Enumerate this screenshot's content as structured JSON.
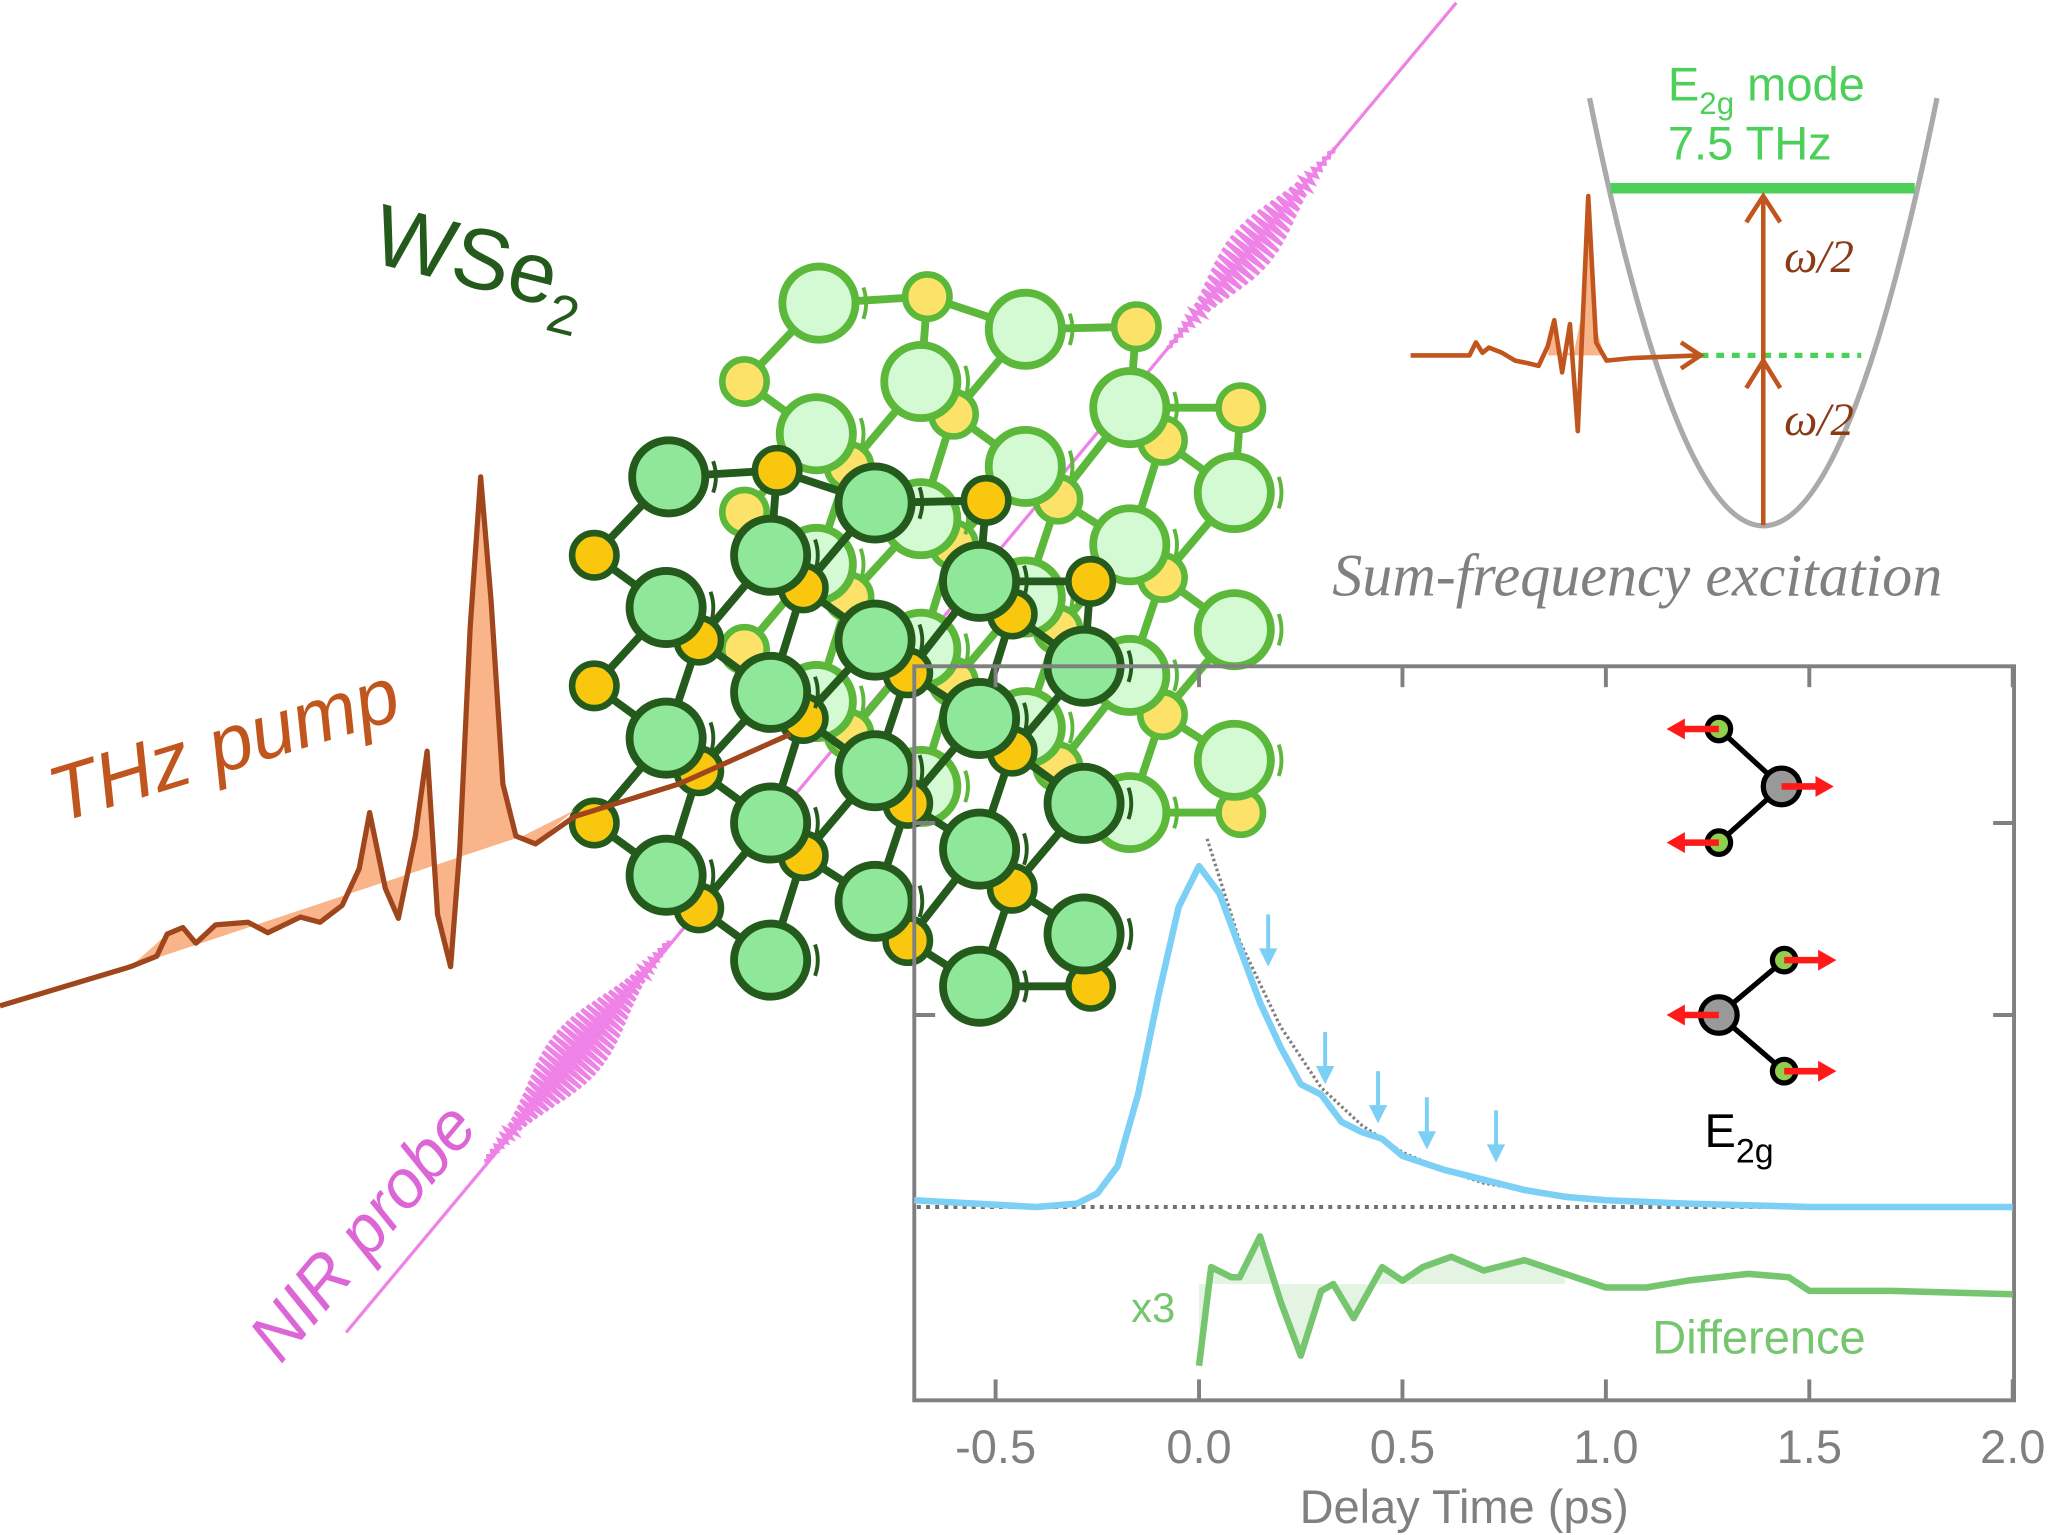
{
  "labels": {
    "material": "WSe",
    "material_sub": "2",
    "pump": "THz pump",
    "probe": "NIR probe",
    "mode_line1_main": "E",
    "mode_line1_sub": "2g",
    "mode_line1_rest": " mode",
    "mode_line2": "7.5 THz",
    "omega_upper": "ω/2",
    "omega_lower": "ω/2",
    "sum_freq": "Sum-frequency excitation",
    "e2g_main": "E",
    "e2g_sub": "2g",
    "x3": "x3",
    "difference": "Difference"
  },
  "colors": {
    "pump": "#b5501e",
    "pump_fill": "#f9b48a",
    "probe": "#ee82e6",
    "mode_green": "#4cd05a",
    "lattice_dark": "#245a1c",
    "lattice_light": "#5cb83a",
    "se_yellow": "#f9c80e",
    "signal": "#7ccff5",
    "difference": "#76c670",
    "axis": "#808080"
  },
  "chart_data": {
    "type": "line",
    "xlabel": "Delay Time (ps)",
    "xlim": [
      -0.7,
      2.0
    ],
    "xticks": [
      "-0.5",
      "0.0",
      "0.5",
      "1.0",
      "1.5",
      "2.0"
    ],
    "ylabel": "",
    "grid": false,
    "series": [
      {
        "role": "signal",
        "color": "#7ccff5",
        "x": [
          -0.7,
          -0.4,
          -0.3,
          -0.25,
          -0.2,
          -0.15,
          -0.1,
          -0.05,
          0.0,
          0.05,
          0.1,
          0.15,
          0.2,
          0.25,
          0.3,
          0.35,
          0.4,
          0.45,
          0.5,
          0.6,
          0.7,
          0.8,
          0.9,
          1.0,
          1.2,
          1.5,
          1.8,
          2.0
        ],
        "y": [
          0.02,
          0.0,
          0.01,
          0.04,
          0.12,
          0.33,
          0.62,
          0.88,
          1.0,
          0.92,
          0.76,
          0.6,
          0.47,
          0.36,
          0.33,
          0.25,
          0.22,
          0.2,
          0.15,
          0.11,
          0.08,
          0.05,
          0.03,
          0.02,
          0.01,
          0.0,
          0.0,
          0.0
        ]
      },
      {
        "role": "fit",
        "color": "#808080",
        "dashed": true,
        "x": [
          0.02,
          0.1,
          0.2,
          0.3,
          0.4,
          0.5,
          0.6,
          0.7,
          0.8,
          1.0,
          1.2
        ],
        "y": [
          1.08,
          0.78,
          0.53,
          0.35,
          0.24,
          0.16,
          0.11,
          0.07,
          0.05,
          0.02,
          0.01
        ]
      },
      {
        "role": "difference",
        "color": "#76c670",
        "label": "Difference",
        "scale": "x3",
        "x": [
          0.0,
          0.03,
          0.08,
          0.1,
          0.15,
          0.2,
          0.25,
          0.3,
          0.33,
          0.38,
          0.45,
          0.5,
          0.55,
          0.62,
          0.7,
          0.8,
          0.9,
          1.0,
          1.1,
          1.2,
          1.35,
          1.45,
          1.5,
          1.7,
          2.0
        ],
        "y": [
          -0.24,
          0.05,
          0.02,
          0.02,
          0.14,
          -0.05,
          -0.21,
          -0.02,
          0.0,
          -0.1,
          0.05,
          0.01,
          0.05,
          0.08,
          0.04,
          0.07,
          0.03,
          -0.01,
          -0.01,
          0.01,
          0.03,
          0.02,
          -0.02,
          -0.02,
          -0.03
        ]
      }
    ],
    "zero_line": 0,
    "mode_markers_x": [
      0.17,
      0.31,
      0.44,
      0.56,
      0.73
    ]
  }
}
